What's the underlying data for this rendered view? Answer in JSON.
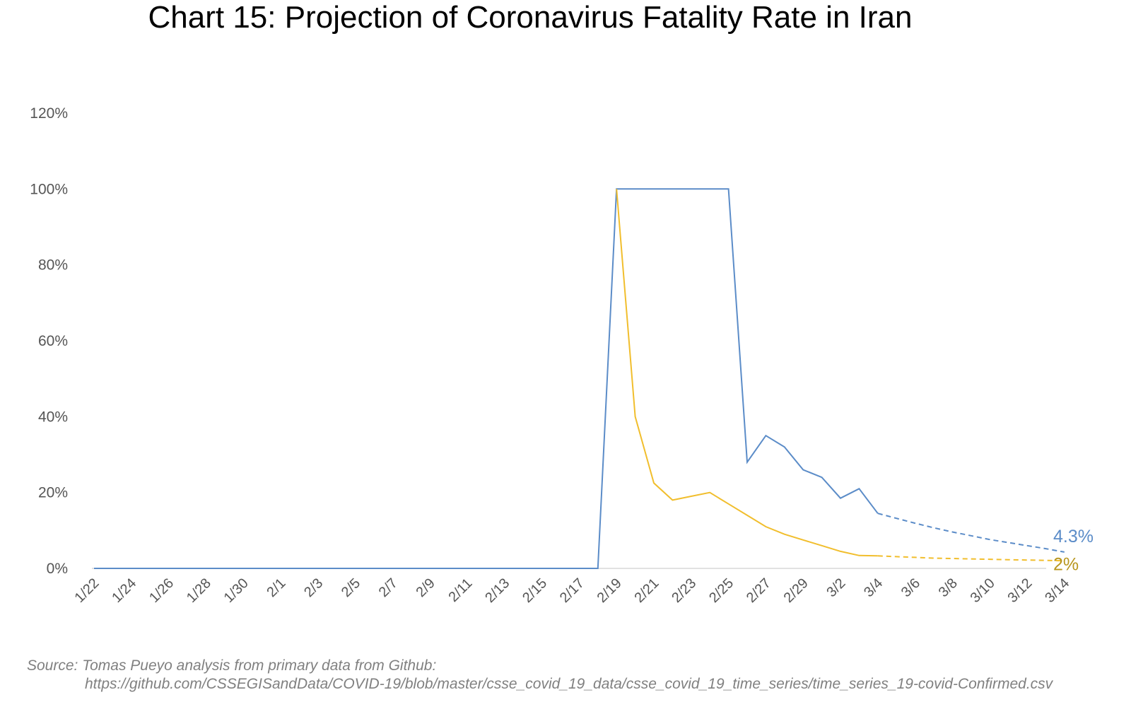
{
  "chart_data": {
    "type": "line",
    "title": "Chart 15: Projection of Coronavirus Fatality Rate in Iran",
    "xlabel": "",
    "ylabel": "",
    "ylim": [
      0,
      120
    ],
    "y_ticks": [
      "0%",
      "20%",
      "40%",
      "60%",
      "80%",
      "100%",
      "120%"
    ],
    "grid": false,
    "legend": "none",
    "x": [
      "1/22",
      "1/23",
      "1/24",
      "1/25",
      "1/26",
      "1/27",
      "1/28",
      "1/29",
      "1/30",
      "1/31",
      "2/1",
      "2/2",
      "2/3",
      "2/4",
      "2/5",
      "2/6",
      "2/7",
      "2/8",
      "2/9",
      "2/10",
      "2/11",
      "2/12",
      "2/13",
      "2/14",
      "2/15",
      "2/16",
      "2/17",
      "2/18",
      "2/19",
      "2/20",
      "2/21",
      "2/22",
      "2/23",
      "2/24",
      "2/25",
      "2/26",
      "2/27",
      "2/28",
      "2/29",
      "3/1",
      "3/2",
      "3/3",
      "3/4",
      "3/5",
      "3/6",
      "3/7",
      "3/8",
      "3/9",
      "3/10",
      "3/11",
      "3/12",
      "3/13",
      "3/14"
    ],
    "x_tick_labels": [
      "1/22",
      "1/24",
      "1/26",
      "1/28",
      "1/30",
      "2/1",
      "2/3",
      "2/5",
      "2/7",
      "2/9",
      "2/11",
      "2/13",
      "2/15",
      "2/17",
      "2/19",
      "2/21",
      "2/23",
      "2/25",
      "2/27",
      "2/29",
      "3/2",
      "3/4",
      "3/6",
      "3/8",
      "3/10",
      "3/12",
      "3/14"
    ],
    "series": [
      {
        "color": "#5B8CC8",
        "actual_end": "3/4",
        "end_label": "4.3%",
        "values": [
          0,
          0,
          0,
          0,
          0,
          0,
          0,
          0,
          0,
          0,
          0,
          0,
          0,
          0,
          0,
          0,
          0,
          0,
          0,
          0,
          0,
          0,
          0,
          0,
          0,
          0,
          0,
          0,
          100,
          100,
          100,
          100,
          100,
          100,
          100,
          28,
          35,
          32,
          26,
          24,
          18.5,
          21,
          14.5,
          13.2,
          11.9,
          10.7,
          9.6,
          8.6,
          7.6,
          6.8,
          6,
          5.2,
          4.3
        ]
      },
      {
        "color": "#F1BE2D",
        "actual_end": "3/4",
        "end_label": "2%",
        "label_color": "#B8961E",
        "values": [
          null,
          null,
          null,
          null,
          null,
          null,
          null,
          null,
          null,
          null,
          null,
          null,
          null,
          null,
          null,
          null,
          null,
          null,
          null,
          null,
          null,
          null,
          null,
          null,
          null,
          null,
          null,
          null,
          100,
          40,
          22.5,
          18,
          19,
          20,
          17,
          14,
          11,
          9,
          7.5,
          6,
          4.5,
          3.4,
          3.3,
          3.1,
          2.9,
          2.7,
          2.6,
          2.5,
          2.4,
          2.3,
          2.2,
          2.1,
          2
        ]
      }
    ],
    "source_line_1": "Source: Tomas Pueyo analysis from primary data from Github:",
    "source_line_2": "https://github.com/CSSEGISandData/COVID-19/blob/master/csse_covid_19_data/csse_covid_19_time_series/time_series_19-covid-Confirmed.csv"
  }
}
